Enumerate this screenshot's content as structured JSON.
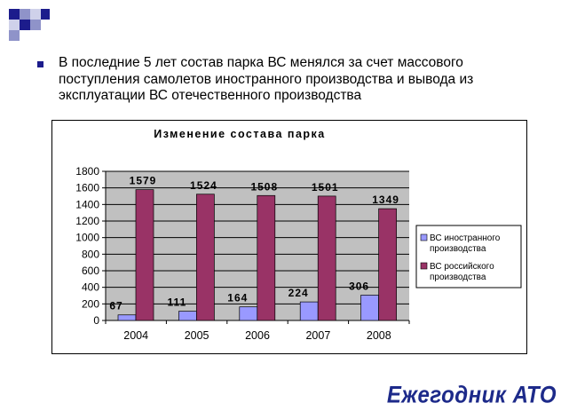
{
  "slide": {
    "bullet_text": "В последние 5 лет состав парка ВС менялся за счет массового поступления самолетов иностранного производства и вывода из эксплуатации ВС отечественного производства",
    "brand_text": "Ежегодник АТО",
    "accent_color": "#1c1c8c",
    "deco_colors": [
      "#1c1c8c",
      "#8f93c9",
      "#cfd1ea"
    ]
  },
  "chart_data": {
    "type": "bar",
    "title": "Изменение состава парка",
    "categories": [
      "2004",
      "2005",
      "2006",
      "2007",
      "2008"
    ],
    "series": [
      {
        "name": "ВС иностранного производства",
        "values": [
          67,
          111,
          164,
          224,
          306
        ],
        "color": "#9999ff"
      },
      {
        "name": "ВС российского производства",
        "values": [
          1579,
          1524,
          1508,
          1501,
          1349
        ],
        "color": "#993366"
      }
    ],
    "ylim": [
      0,
      1800
    ],
    "yticks": [
      0,
      200,
      400,
      600,
      800,
      1000,
      1200,
      1400,
      1600,
      1800
    ],
    "grid": true,
    "legend": "right",
    "plot_background": "#c0c0c0"
  }
}
